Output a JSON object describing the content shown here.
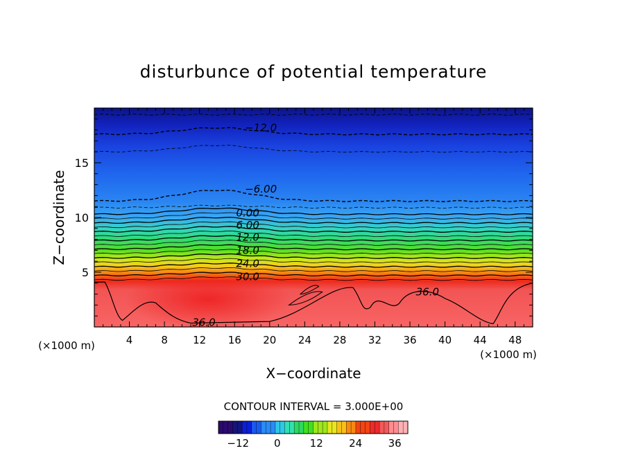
{
  "chart_data": {
    "type": "heatmap",
    "title": "disturbunce of potential temperature",
    "xlabel": "X−coordinate",
    "ylabel": "Z−coordinate",
    "x_unit_left": "(×1000 m)",
    "x_unit_right": "(×1000 m)",
    "xlim": [
      0,
      50
    ],
    "ylim": [
      0,
      20
    ],
    "x_ticks": [
      4,
      8,
      12,
      16,
      20,
      24,
      28,
      32,
      36,
      40,
      44,
      48
    ],
    "y_ticks": [
      5,
      10,
      15
    ],
    "contour_interval_text": "CONTOUR INTERVAL = 3.000E+00",
    "contour_labels": [
      {
        "text": "−12.0",
        "x": 19,
        "z": 18.2
      },
      {
        "text": "−6.00",
        "x": 19,
        "z": 12.6
      },
      {
        "text": "0.00",
        "x": 17.5,
        "z": 10.4
      },
      {
        "text": "6.00",
        "x": 17.5,
        "z": 9.3
      },
      {
        "text": "12.0",
        "x": 17.5,
        "z": 8.2
      },
      {
        "text": "18.0",
        "x": 17.5,
        "z": 7.0
      },
      {
        "text": "24.0",
        "x": 17.5,
        "z": 5.8
      },
      {
        "text": "30.0",
        "x": 17.5,
        "z": 4.6
      },
      {
        "text": "36.0",
        "x": 38,
        "z": 3.2
      },
      {
        "text": "36.0",
        "x": 12.5,
        "z": 0.4
      }
    ],
    "colorbar": {
      "min": -18,
      "max": 40,
      "ticks": [
        -12,
        0,
        12,
        24,
        36
      ],
      "tick_labels": [
        "−12",
        "0",
        "12",
        "24",
        "36"
      ]
    }
  },
  "colors": {
    "scale": [
      "#2a0a6e",
      "#14147a",
      "#0c1fd6",
      "#1a5af0",
      "#2a8cf5",
      "#2ec7e6",
      "#33e0b0",
      "#2fd860",
      "#40e020",
      "#9fe61c",
      "#e8e620",
      "#f8c018",
      "#f88a12",
      "#f24414",
      "#ee2a2a",
      "#f25a5a",
      "#ff8c90",
      "#ffb0b4"
    ]
  }
}
